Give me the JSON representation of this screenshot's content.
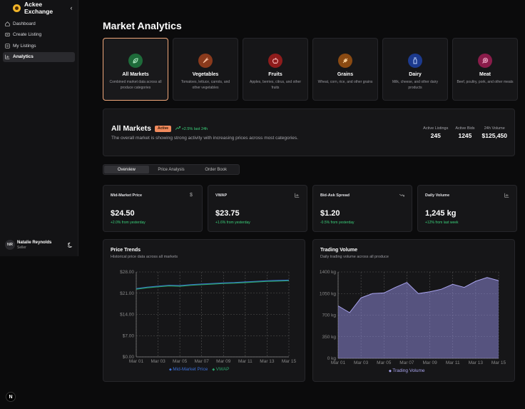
{
  "app": {
    "name": "Ackee Exchange",
    "collapse_icon": "chevron-left-icon"
  },
  "sidebar": {
    "items": [
      {
        "label": "Dashboard",
        "icon": "home-icon",
        "active": false
      },
      {
        "label": "Create Listing",
        "icon": "create-icon",
        "active": false
      },
      {
        "label": "My Listings",
        "icon": "listings-icon",
        "active": false
      },
      {
        "label": "Analytics",
        "icon": "analytics-icon",
        "active": true
      }
    ],
    "user": {
      "initials": "NR",
      "name": "Natalie Reynolds",
      "role": "Seller"
    }
  },
  "page": {
    "title": "Market Analytics"
  },
  "categories": [
    {
      "title": "All Markets",
      "desc": "Combined market data across all produce categories",
      "color": "#1e6b3a",
      "icon": "leaf-icon",
      "selected": true
    },
    {
      "title": "Vegetables",
      "desc": "Tomatoes, lettuce, carrots, and other vegetables",
      "color": "#8a3a1c",
      "icon": "carrot-icon",
      "selected": false
    },
    {
      "title": "Fruits",
      "desc": "Apples, berries, citrus, and other fruits",
      "color": "#8e1c1c",
      "icon": "apple-icon",
      "selected": false
    },
    {
      "title": "Grains",
      "desc": "Wheat, corn, rice, and other grains",
      "color": "#8a4a12",
      "icon": "wheat-icon",
      "selected": false
    },
    {
      "title": "Dairy",
      "desc": "Milk, cheese, and other dairy products",
      "color": "#1c3a8e",
      "icon": "milk-icon",
      "selected": false
    },
    {
      "title": "Meat",
      "desc": "Beef, poultry, pork, and other meats",
      "color": "#8a1c4a",
      "icon": "beef-icon",
      "selected": false
    }
  ],
  "summary": {
    "title": "All Markets",
    "badge": "Active",
    "change": "+2.5% last 24h",
    "desc": "The overall market is showing strong activity with increasing prices across most categories.",
    "stats": [
      {
        "label": "Active Listings",
        "value": "245"
      },
      {
        "label": "Active Bids",
        "value": "1245"
      },
      {
        "label": "24h Volume",
        "value": "$125,450"
      }
    ]
  },
  "tabs": [
    {
      "label": "Overview",
      "active": true
    },
    {
      "label": "Price Analysis",
      "active": false
    },
    {
      "label": "Order Book",
      "active": false
    }
  ],
  "metrics": [
    {
      "label": "Mid-Market Price",
      "icon": "dollar-icon",
      "value": "$24.50",
      "change": "+2.0% from yesterday"
    },
    {
      "label": "VWAP",
      "icon": "bar-chart-icon",
      "value": "$23.75",
      "change": "+1.6% from yesterday"
    },
    {
      "label": "Bid-Ask Spread",
      "icon": "trend-down-icon",
      "value": "$1.20",
      "change": "-0.5% from yesterday"
    },
    {
      "label": "Daily Volume",
      "icon": "bar-chart-icon",
      "value": "1,245 kg",
      "change": "+12% from last week"
    }
  ],
  "chart_data": [
    {
      "type": "line",
      "title": "Price Trends",
      "subtitle": "Historical price data across all markets",
      "x": [
        "Mar 01",
        "Mar 02",
        "Mar 03",
        "Mar 04",
        "Mar 05",
        "Mar 06",
        "Mar 07",
        "Mar 08",
        "Mar 09",
        "Mar 10",
        "Mar 11",
        "Mar 12",
        "Mar 13",
        "Mar 14",
        "Mar 15"
      ],
      "xticks": [
        "Mar 01",
        "Mar 03",
        "Mar 05",
        "Mar 07",
        "Mar 09",
        "Mar 11",
        "Mar 13",
        "Mar 15"
      ],
      "yticks": [
        "$0.00",
        "$7.00",
        "$14.00",
        "$21.00",
        "$28.00"
      ],
      "ylim": [
        0,
        28
      ],
      "series": [
        {
          "name": "Mid-Market Price",
          "color": "#3b6fd6",
          "values": [
            22.5,
            23.0,
            23.3,
            23.6,
            23.5,
            23.8,
            24.0,
            24.2,
            24.4,
            24.5,
            24.7,
            24.9,
            25.1,
            25.2,
            25.3
          ]
        },
        {
          "name": "VWAP",
          "color": "#2aa36b",
          "values": [
            22.3,
            22.8,
            23.1,
            23.4,
            23.3,
            23.6,
            23.8,
            24.0,
            24.2,
            24.3,
            24.5,
            24.7,
            24.9,
            25.0,
            25.1
          ]
        }
      ],
      "grid": true,
      "legend": "bottom"
    },
    {
      "type": "area",
      "title": "Trading Volume",
      "subtitle": "Daily trading volume across all produce",
      "x": [
        "Mar 01",
        "Mar 02",
        "Mar 03",
        "Mar 04",
        "Mar 05",
        "Mar 06",
        "Mar 07",
        "Mar 08",
        "Mar 09",
        "Mar 10",
        "Mar 11",
        "Mar 12",
        "Mar 13",
        "Mar 14",
        "Mar 15"
      ],
      "xticks": [
        "Mar 01",
        "Mar 03",
        "Mar 05",
        "Mar 07",
        "Mar 09",
        "Mar 11",
        "Mar 13",
        "Mar 15"
      ],
      "yticks": [
        "0 kg",
        "350 kg",
        "700 kg",
        "1050 kg",
        "1400 kg"
      ],
      "ylim": [
        0,
        1400
      ],
      "series": [
        {
          "name": "Trading Volume",
          "color": "#8c86d6",
          "values": [
            850,
            740,
            980,
            1050,
            1060,
            1150,
            1230,
            1050,
            1080,
            1120,
            1200,
            1150,
            1250,
            1310,
            1260
          ]
        }
      ],
      "grid": true,
      "legend": "bottom"
    }
  ]
}
